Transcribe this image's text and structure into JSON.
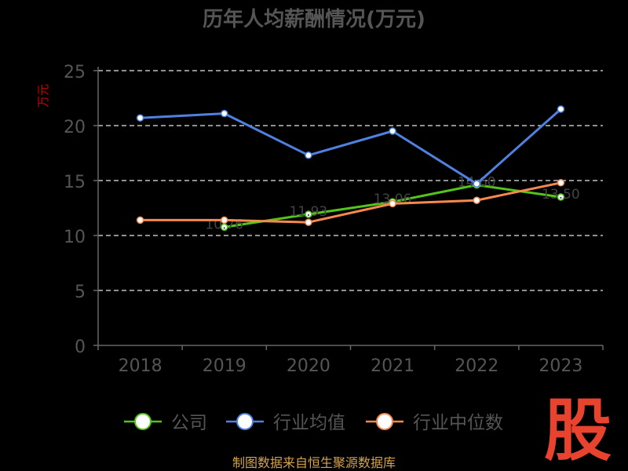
{
  "chart_data": {
    "type": "line",
    "title": "历年人均薪酬情况(万元)",
    "ylabel": "万元",
    "categories": [
      "2018",
      "2019",
      "2020",
      "2021",
      "2022",
      "2023"
    ],
    "ylim": [
      0,
      25
    ],
    "yticks": [
      0,
      5,
      10,
      15,
      20,
      25
    ],
    "grid": true,
    "legend_position": "bottom",
    "series": [
      {
        "name": "公司",
        "color": "#52c41a",
        "values": [
          null,
          10.76,
          11.93,
          13.06,
          14.6,
          13.5
        ],
        "labels": [
          "",
          "10.76",
          "11.93",
          "13.06",
          "14.60",
          "13.50"
        ]
      },
      {
        "name": "行业均值",
        "color": "#4f81e0",
        "values": [
          20.7,
          21.1,
          17.3,
          19.5,
          14.7,
          21.5
        ]
      },
      {
        "name": "行业中位数",
        "color": "#f7894f",
        "values": [
          11.4,
          11.4,
          11.2,
          12.9,
          13.2,
          14.8
        ]
      }
    ]
  },
  "footer": {
    "source": "制图数据来自恒生聚源数据库"
  },
  "logo": {
    "text": "股",
    "color": "#e8432f"
  }
}
